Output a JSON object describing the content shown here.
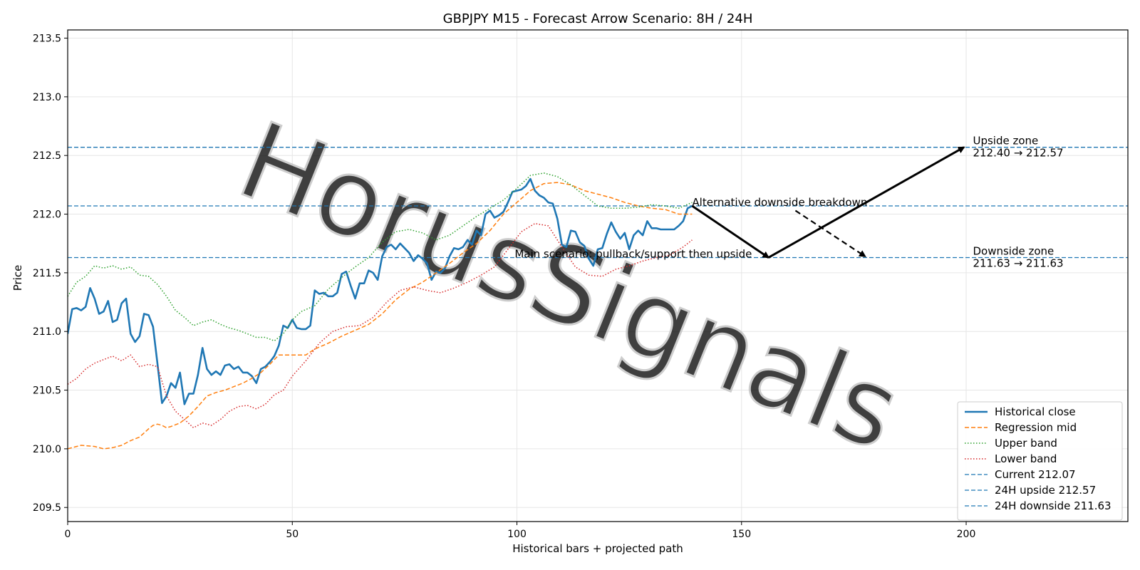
{
  "chart_data": {
    "type": "line",
    "title": "GBPJPY M15 - Forecast Arrow Scenario: 8H / 24H",
    "xlabel": "Historical bars + projected path",
    "ylabel": "Price",
    "xlim": [
      0,
      236
    ],
    "ylim": [
      209.38,
      213.57
    ],
    "xticks": [
      "0",
      "50",
      "100",
      "150",
      "200"
    ],
    "yticks": [
      "209.5",
      "210.0",
      "210.5",
      "211.0",
      "211.5",
      "212.0",
      "212.5",
      "213.0",
      "213.5"
    ],
    "grid": true,
    "legend_position": "bottom-right",
    "watermark": "HorusSignals",
    "colors": {
      "close": "#1f77b4",
      "mid": "#ff7f0e",
      "upper": "#2ca02c",
      "lower": "#d62728",
      "hline": "#1f77b4",
      "arrow": "#000000"
    },
    "series": [
      {
        "name": "Historical close",
        "x": [
          0,
          1,
          2,
          3,
          4,
          5,
          6,
          7,
          8,
          9,
          10,
          11,
          12,
          13,
          14,
          15,
          16,
          17,
          18,
          19,
          20,
          21,
          22,
          23,
          24,
          25,
          26,
          27,
          28,
          29,
          30,
          31,
          32,
          33,
          34,
          35,
          36,
          37,
          38,
          39,
          40,
          41,
          42,
          43,
          44,
          45,
          46,
          47,
          48,
          49,
          50,
          51,
          52,
          53,
          54,
          55,
          56,
          57,
          58,
          59,
          60,
          61,
          62,
          63,
          64,
          65,
          66,
          67,
          68,
          69,
          70,
          71,
          72,
          73,
          74,
          75,
          76,
          77,
          78,
          79,
          80,
          81,
          82,
          83,
          84,
          85,
          86,
          87,
          88,
          89,
          90,
          91,
          92,
          93,
          94,
          95,
          96,
          97,
          98,
          99,
          100,
          101,
          102,
          103,
          104,
          105,
          106,
          107,
          108,
          109,
          110,
          111,
          112,
          113,
          114,
          115,
          116,
          117,
          118,
          119,
          120,
          121,
          122,
          123,
          124,
          125,
          126,
          127,
          128,
          129,
          130,
          131,
          132,
          133,
          134,
          135,
          136,
          137,
          138,
          139
        ],
        "values": [
          210.98,
          211.19,
          211.2,
          211.18,
          211.21,
          211.37,
          211.28,
          211.15,
          211.17,
          211.26,
          211.08,
          211.1,
          211.24,
          211.28,
          210.98,
          210.91,
          210.96,
          211.15,
          211.14,
          211.04,
          210.72,
          210.39,
          210.45,
          210.56,
          210.52,
          210.65,
          210.38,
          210.47,
          210.47,
          210.63,
          210.86,
          210.68,
          210.63,
          210.66,
          210.63,
          210.71,
          210.72,
          210.68,
          210.7,
          210.65,
          210.65,
          210.62,
          210.56,
          210.68,
          210.7,
          210.74,
          210.79,
          210.88,
          211.05,
          211.03,
          211.1,
          211.03,
          211.02,
          211.02,
          211.05,
          211.35,
          211.32,
          211.33,
          211.3,
          211.3,
          211.33,
          211.49,
          211.51,
          211.39,
          211.28,
          211.41,
          211.41,
          211.52,
          211.5,
          211.44,
          211.64,
          211.72,
          211.74,
          211.7,
          211.75,
          211.71,
          211.67,
          211.6,
          211.65,
          211.62,
          211.58,
          211.44,
          211.51,
          211.5,
          211.54,
          211.64,
          211.71,
          211.7,
          211.72,
          211.78,
          211.74,
          211.86,
          211.82,
          212.0,
          212.03,
          211.97,
          211.99,
          212.02,
          212.1,
          212.19,
          212.2,
          212.21,
          212.24,
          212.3,
          212.2,
          212.16,
          212.14,
          212.1,
          212.09,
          211.96,
          211.74,
          211.72,
          211.86,
          211.85,
          211.76,
          211.73,
          211.62,
          211.56,
          211.7,
          211.71,
          211.83,
          211.93,
          211.85,
          211.79,
          211.84,
          211.7,
          211.82,
          211.86,
          211.82,
          211.94,
          211.88,
          211.88,
          211.87,
          211.87,
          211.87,
          211.87,
          211.9,
          211.94,
          212.05,
          212.07
        ]
      },
      {
        "name": "Regression mid",
        "x": [
          0,
          3,
          6,
          8,
          10,
          12,
          14,
          16,
          18,
          19,
          20,
          21,
          22,
          23,
          25,
          27,
          29,
          31,
          33,
          35,
          37,
          39,
          41,
          43,
          45,
          47,
          49,
          51,
          53,
          55,
          58,
          61,
          64,
          67,
          70,
          73,
          76,
          79,
          82,
          85,
          88,
          91,
          94,
          97,
          100,
          103,
          106,
          109,
          112,
          115,
          118,
          121,
          124,
          127,
          130,
          133,
          136,
          139
        ],
        "values": [
          210.0,
          210.03,
          210.02,
          210.0,
          210.01,
          210.03,
          210.07,
          210.1,
          210.17,
          210.2,
          210.21,
          210.2,
          210.18,
          210.19,
          210.22,
          210.28,
          210.36,
          210.45,
          210.48,
          210.5,
          210.53,
          210.56,
          210.6,
          210.65,
          210.72,
          210.8,
          210.8,
          210.8,
          210.8,
          210.85,
          210.9,
          210.96,
          211.01,
          211.06,
          211.15,
          211.27,
          211.36,
          211.42,
          211.5,
          211.58,
          211.67,
          211.75,
          211.86,
          212.0,
          212.1,
          212.2,
          212.26,
          212.27,
          212.25,
          212.2,
          212.17,
          212.14,
          212.1,
          212.07,
          212.05,
          212.04,
          212.0,
          212.0
        ]
      },
      {
        "name": "Upper band",
        "x": [
          0,
          2,
          4,
          6,
          8,
          10,
          12,
          14,
          16,
          18,
          20,
          22,
          24,
          26,
          28,
          30,
          32,
          34,
          36,
          38,
          40,
          42,
          44,
          46,
          48,
          50,
          52,
          55,
          58,
          61,
          64,
          67,
          70,
          73,
          76,
          79,
          82,
          85,
          88,
          91,
          94,
          97,
          100,
          103,
          106,
          109,
          112,
          115,
          118,
          121,
          124,
          127,
          130,
          133,
          136,
          139
        ],
        "values": [
          211.3,
          211.42,
          211.47,
          211.56,
          211.54,
          211.56,
          211.53,
          211.55,
          211.48,
          211.47,
          211.4,
          211.3,
          211.18,
          211.12,
          211.05,
          211.08,
          211.1,
          211.06,
          211.03,
          211.01,
          210.98,
          210.95,
          210.95,
          210.92,
          210.98,
          211.1,
          211.17,
          211.22,
          211.36,
          211.46,
          211.55,
          211.63,
          211.76,
          211.85,
          211.87,
          211.84,
          211.78,
          211.82,
          211.9,
          211.98,
          212.05,
          212.12,
          212.22,
          212.33,
          212.35,
          212.32,
          212.25,
          212.16,
          212.07,
          212.05,
          212.05,
          212.06,
          212.08,
          212.07,
          212.05,
          212.1
        ]
      },
      {
        "name": "Lower band",
        "x": [
          0,
          2,
          4,
          6,
          8,
          10,
          12,
          14,
          16,
          18,
          20,
          22,
          24,
          26,
          28,
          30,
          32,
          34,
          36,
          38,
          40,
          42,
          44,
          46,
          48,
          50,
          53,
          56,
          59,
          62,
          65,
          68,
          71,
          74,
          77,
          80,
          83,
          86,
          89,
          92,
          95,
          98,
          101,
          104,
          107,
          110,
          113,
          116,
          119,
          122,
          125,
          128,
          131,
          134,
          137,
          139
        ],
        "values": [
          210.55,
          210.6,
          210.68,
          210.73,
          210.76,
          210.79,
          210.75,
          210.8,
          210.7,
          210.72,
          210.7,
          210.45,
          210.32,
          210.25,
          210.18,
          210.22,
          210.2,
          210.25,
          210.32,
          210.36,
          210.37,
          210.34,
          210.38,
          210.46,
          210.5,
          210.62,
          210.75,
          210.9,
          211.0,
          211.04,
          211.05,
          211.12,
          211.25,
          211.35,
          211.38,
          211.35,
          211.33,
          211.37,
          211.42,
          211.48,
          211.55,
          211.7,
          211.85,
          211.92,
          211.9,
          211.72,
          211.55,
          211.48,
          211.47,
          211.53,
          211.56,
          211.6,
          211.63,
          211.65,
          211.72,
          211.78
        ]
      }
    ],
    "hlines": [
      {
        "name": "Current 212.07",
        "y": 212.07
      },
      {
        "name": "24H upside 212.57",
        "y": 212.57
      },
      {
        "name": "24H downside 211.63",
        "y": 211.63
      }
    ],
    "arrows": [
      {
        "from": [
          139,
          212.07
        ],
        "to": [
          156,
          211.63
        ],
        "style": "solid"
      },
      {
        "from": [
          156,
          211.63
        ],
        "to": [
          199.5,
          212.57
        ],
        "style": "solid"
      },
      {
        "from": [
          162,
          212.03
        ],
        "to": [
          177.5,
          211.64
        ],
        "style": "dashed"
      }
    ],
    "annotations": [
      {
        "x": 139,
        "y": 212.07,
        "text": "Alternative downside breakdown"
      },
      {
        "x": 99.5,
        "y": 211.63,
        "text": "Main scenario: pullback/support then upside"
      },
      {
        "x": 201.5,
        "y": 212.57,
        "text": "Upside zone",
        "text2": "212.40 → 212.57"
      },
      {
        "x": 201.5,
        "y": 211.63,
        "text": "Downside zone",
        "text2": "211.63 → 211.63"
      }
    ]
  }
}
